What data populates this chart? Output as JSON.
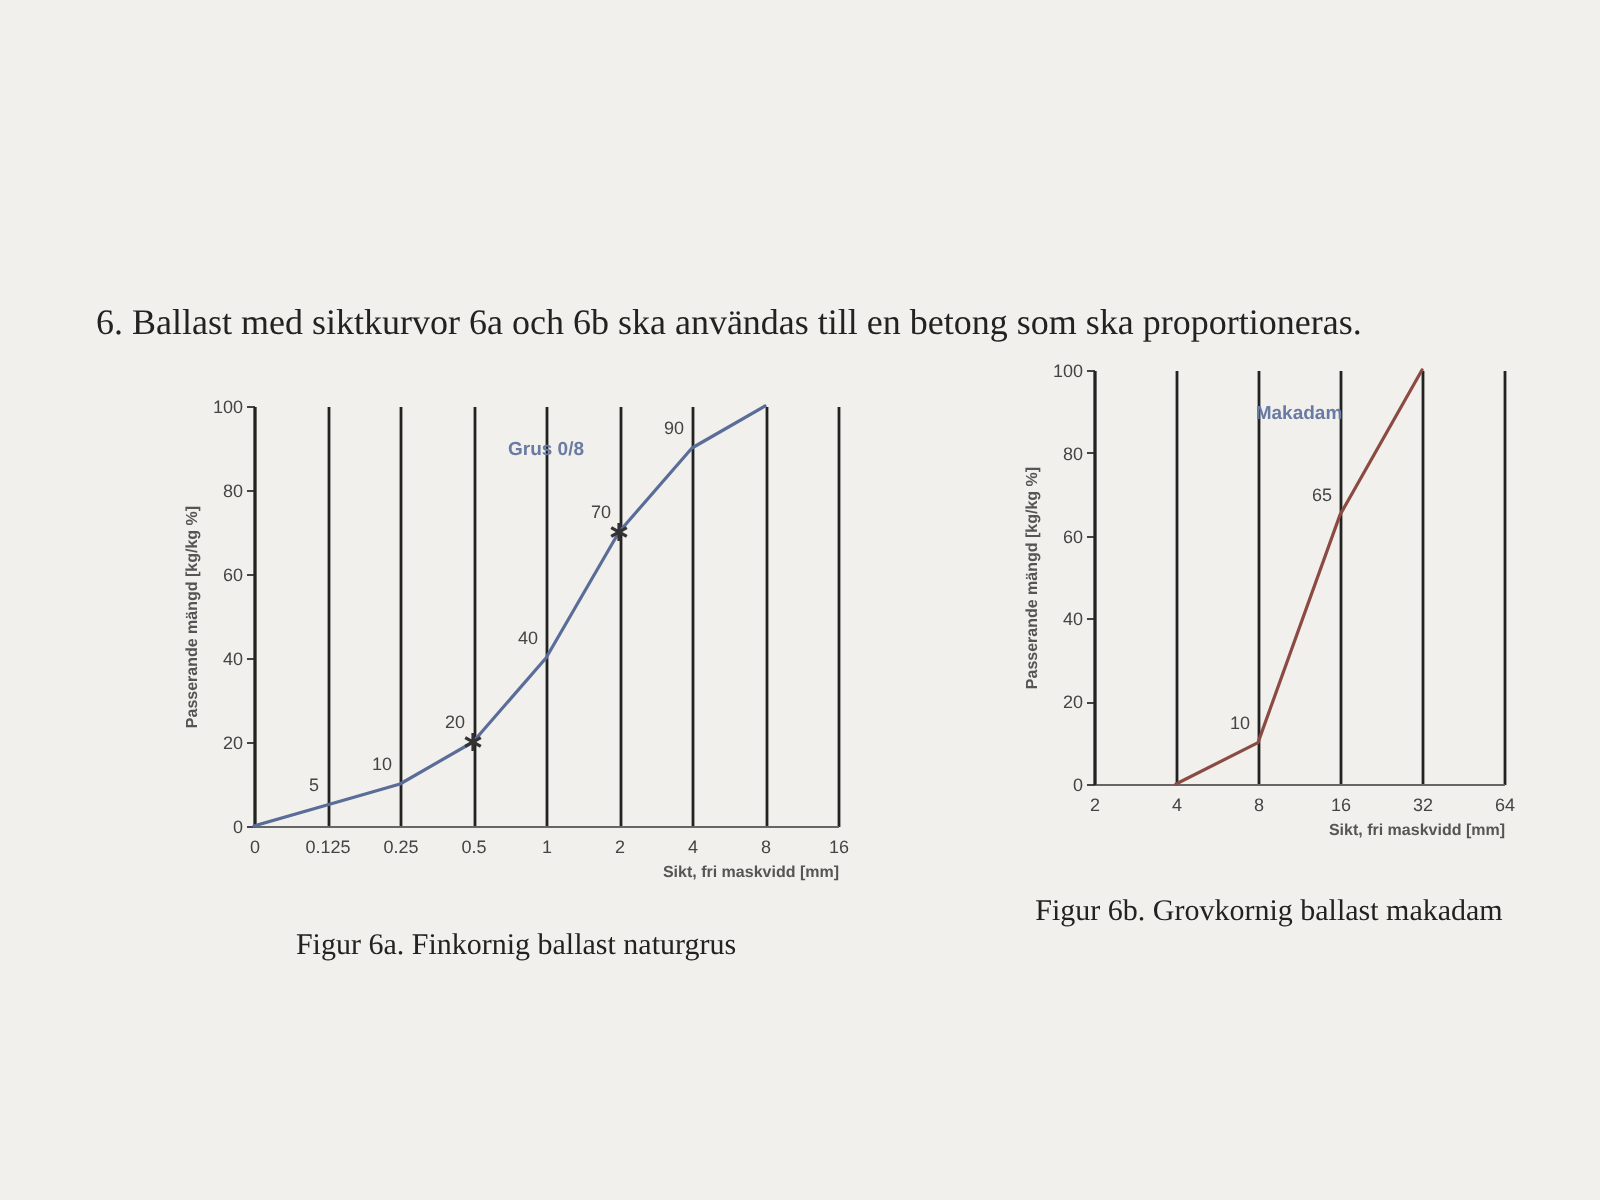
{
  "chart_data": [
    {
      "type": "line",
      "title": "Grus 0/8",
      "xlabel": "Sikt, fri maskvidd [mm]",
      "ylabel": "Passerande mängd [kg/kg %]",
      "categories": [
        "0",
        "0.125",
        "0.25",
        "0.5",
        "1",
        "2",
        "4",
        "8",
        "16"
      ],
      "series": [
        {
          "color": "#5a6c98",
          "values": [
            0,
            5,
            10,
            20,
            40,
            70,
            90,
            100,
            null
          ],
          "value_labels": [
            null,
            "5",
            "10",
            "20",
            "40",
            "70",
            "90",
            null,
            null
          ]
        },
        {
          "type": "scatter",
          "x": [
            "0.5",
            "2"
          ],
          "values": [
            20,
            70
          ],
          "color": "#333333",
          "marker": "cross"
        }
      ],
      "ylim": [
        0,
        100
      ],
      "yticks": [
        0,
        20,
        40,
        60,
        80,
        100
      ],
      "grid": "x",
      "annotations": [
        "6. Ballast med siktkurvor 6a och 6b ska användas till en betong som ska proportioneras.",
        "Figur 6a. Finkornig ballast naturgrus"
      ]
    },
    {
      "type": "line",
      "title": "Makadam",
      "xlabel": "Sikt, fri maskvidd [mm]",
      "ylabel": "Passerande mängd [kg/kg %]",
      "categories": [
        "2",
        "4",
        "8",
        "16",
        "32",
        "64"
      ],
      "series": [
        {
          "color": "#8b4a42",
          "values": [
            null,
            0,
            10,
            65,
            100,
            null
          ],
          "value_labels": [
            null,
            null,
            "10",
            "65",
            null,
            null
          ]
        }
      ],
      "ylim": [
        0,
        100
      ],
      "yticks": [
        0,
        20,
        40,
        60,
        80,
        100
      ],
      "grid": "x",
      "annotations": [
        "Figur 6b. Grovkornig ballast makadam"
      ]
    }
  ]
}
